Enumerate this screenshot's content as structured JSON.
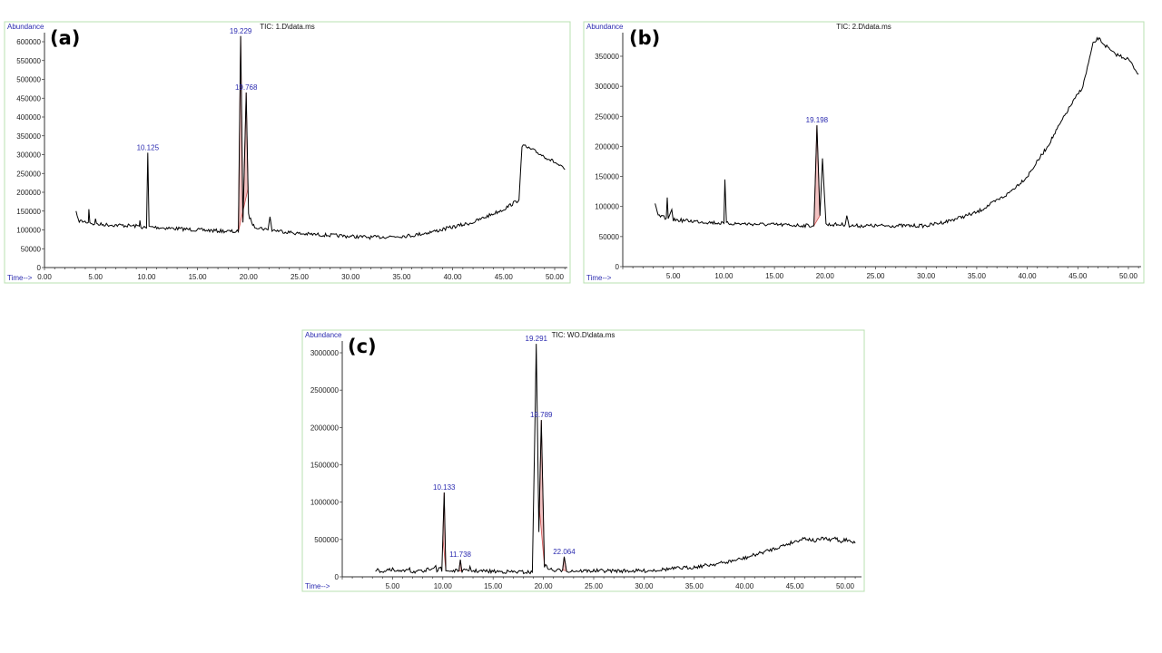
{
  "chart_data": [
    {
      "type": "line",
      "panel_label": "(a)",
      "title": "TIC: 1.D\\data.ms",
      "ylabel": "Abundance",
      "xlabel": "Time-->",
      "xlim": [
        0,
        51
      ],
      "ylim": [
        0,
        620000
      ],
      "xticks": [
        "0.00",
        "5.00",
        "10.00",
        "15.00",
        "20.00",
        "25.00",
        "30.00",
        "35.00",
        "40.00",
        "45.00",
        "50.00"
      ],
      "xtick_values": [
        0,
        5,
        10,
        15,
        20,
        25,
        30,
        35,
        40,
        45,
        50
      ],
      "yticks": [
        0,
        50000,
        100000,
        150000,
        200000,
        250000,
        300000,
        350000,
        400000,
        450000,
        500000,
        550000,
        600000
      ],
      "peak_labels": [
        {
          "text": "10.125",
          "x": 10.125,
          "y": 305000
        },
        {
          "text": "19.229",
          "x": 19.229,
          "y": 615000
        },
        {
          "text": "19.768",
          "x": 19.768,
          "y": 465000
        }
      ],
      "integrated": [
        [
          19.0,
          19.95
        ]
      ],
      "series": [
        {
          "name": "TIC",
          "points": [
            [
              3.1,
              150000
            ],
            [
              3.3,
              125000
            ],
            [
              4.3,
              120000
            ],
            [
              4.35,
              155000
            ],
            [
              4.45,
              120000
            ],
            [
              4.9,
              115000
            ],
            [
              5,
              130000
            ],
            [
              5.1,
              115000
            ],
            [
              9.3,
              110000
            ],
            [
              9.35,
              125000
            ],
            [
              9.45,
              108000
            ],
            [
              10.0,
              105000
            ],
            [
              10.125,
              305000
            ],
            [
              10.25,
              108000
            ],
            [
              15,
              100000
            ],
            [
              19,
              95000
            ],
            [
              19.229,
              615000
            ],
            [
              19.45,
              120000
            ],
            [
              19.768,
              465000
            ],
            [
              20.0,
              140000
            ],
            [
              20.5,
              110000
            ],
            [
              21.9,
              100000
            ],
            [
              22.1,
              135000
            ],
            [
              22.3,
              100000
            ],
            [
              25,
              90000
            ],
            [
              32,
              80000
            ],
            [
              36,
              85000
            ],
            [
              38,
              95000
            ],
            [
              42,
              120000
            ],
            [
              45,
              155000
            ],
            [
              46.5,
              180000
            ],
            [
              46.8,
              325000
            ],
            [
              48,
              310000
            ],
            [
              50,
              280000
            ],
            [
              51,
              260000
            ]
          ]
        }
      ]
    },
    {
      "type": "line",
      "panel_label": "(b)",
      "title": "TIC: 2.D\\data.ms",
      "ylabel": "Abundance",
      "xlabel": "Time-->",
      "xlim": [
        0,
        51
      ],
      "ylim": [
        0,
        390000
      ],
      "xticks": [
        "5.00",
        "10.00",
        "15.00",
        "20.00",
        "25.00",
        "30.00",
        "35.00",
        "40.00",
        "45.00",
        "50.00"
      ],
      "xtick_values": [
        5,
        10,
        15,
        20,
        25,
        30,
        35,
        40,
        45,
        50
      ],
      "yticks": [
        0,
        50000,
        100000,
        150000,
        200000,
        250000,
        300000,
        350000
      ],
      "peak_labels": [
        {
          "text": "19.198",
          "x": 19.198,
          "y": 235000
        }
      ],
      "integrated": [
        [
          18.9,
          19.5
        ]
      ],
      "series": [
        {
          "name": "TIC",
          "points": [
            [
              3.2,
              105000
            ],
            [
              3.5,
              85000
            ],
            [
              4.3,
              80000
            ],
            [
              4.4,
              115000
            ],
            [
              4.5,
              80000
            ],
            [
              4.85,
              95000
            ],
            [
              5,
              78000
            ],
            [
              10,
              72000
            ],
            [
              10.1,
              145000
            ],
            [
              10.25,
              72000
            ],
            [
              18.9,
              68000
            ],
            [
              19.198,
              235000
            ],
            [
              19.5,
              85000
            ],
            [
              19.75,
              180000
            ],
            [
              20.1,
              70000
            ],
            [
              22,
              70000
            ],
            [
              22.15,
              85000
            ],
            [
              22.4,
              68000
            ],
            [
              30,
              68000
            ],
            [
              32,
              75000
            ],
            [
              35,
              90000
            ],
            [
              38,
              120000
            ],
            [
              40,
              150000
            ],
            [
              42,
              200000
            ],
            [
              44,
              260000
            ],
            [
              45.5,
              300000
            ],
            [
              46.5,
              370000
            ],
            [
              47,
              380000
            ],
            [
              48.5,
              355000
            ],
            [
              50,
              345000
            ],
            [
              51,
              320000
            ]
          ]
        }
      ]
    },
    {
      "type": "line",
      "panel_label": "(c)",
      "title": "TIC: WO.D\\data.ms",
      "ylabel": "Abundance",
      "xlabel": "Time-->",
      "xlim": [
        0,
        51
      ],
      "ylim": [
        0,
        3150000
      ],
      "xticks": [
        "5.00",
        "10.00",
        "15.00",
        "20.00",
        "25.00",
        "30.00",
        "35.00",
        "40.00",
        "45.00",
        "50.00"
      ],
      "xtick_values": [
        5,
        10,
        15,
        20,
        25,
        30,
        35,
        40,
        45,
        50
      ],
      "yticks": [
        0,
        500000,
        1000000,
        1500000,
        2000000,
        2500000,
        3000000
      ],
      "peak_labels": [
        {
          "text": "10.133",
          "x": 10.133,
          "y": 1130000
        },
        {
          "text": "11.738",
          "x": 11.738,
          "y": 230000
        },
        {
          "text": "19.291",
          "x": 19.291,
          "y": 3120000
        },
        {
          "text": "19.789",
          "x": 19.789,
          "y": 2100000
        },
        {
          "text": "22.064",
          "x": 22.064,
          "y": 270000
        }
      ],
      "integrated": [
        [
          10.0,
          10.3
        ],
        [
          11.6,
          11.9
        ],
        [
          19.6,
          20.1
        ],
        [
          21.9,
          22.3
        ]
      ],
      "series": [
        {
          "name": "TIC",
          "points": [
            [
              3.3,
              90000
            ],
            [
              4.3,
              70000
            ],
            [
              4.4,
              100000
            ],
            [
              4.9,
              80000
            ],
            [
              5,
              120000
            ],
            [
              5.1,
              75000
            ],
            [
              6.2,
              70000
            ],
            [
              6.3,
              100000
            ],
            [
              6.7,
              120000
            ],
            [
              6.8,
              70000
            ],
            [
              8.3,
              70000
            ],
            [
              8.4,
              90000
            ],
            [
              9.3,
              150000
            ],
            [
              9.4,
              70000
            ],
            [
              9.8,
              130000
            ],
            [
              9.9,
              70000
            ],
            [
              10.133,
              1130000
            ],
            [
              10.3,
              80000
            ],
            [
              11.6,
              80000
            ],
            [
              11.738,
              230000
            ],
            [
              11.9,
              80000
            ],
            [
              12.6,
              80000
            ],
            [
              12.7,
              140000
            ],
            [
              12.85,
              80000
            ],
            [
              18.9,
              60000
            ],
            [
              19.291,
              3120000
            ],
            [
              19.55,
              600000
            ],
            [
              19.789,
              2100000
            ],
            [
              20.1,
              150000
            ],
            [
              21,
              80000
            ],
            [
              21.9,
              90000
            ],
            [
              22.064,
              270000
            ],
            [
              22.3,
              80000
            ],
            [
              30,
              80000
            ],
            [
              35,
              130000
            ],
            [
              38,
              190000
            ],
            [
              40,
              250000
            ],
            [
              43,
              380000
            ],
            [
              46,
              520000
            ],
            [
              47,
              480000
            ],
            [
              48,
              520000
            ],
            [
              48.5,
              480000
            ],
            [
              49,
              530000
            ],
            [
              49.5,
              470000
            ],
            [
              50,
              500000
            ],
            [
              51,
              450000
            ]
          ]
        }
      ]
    }
  ]
}
